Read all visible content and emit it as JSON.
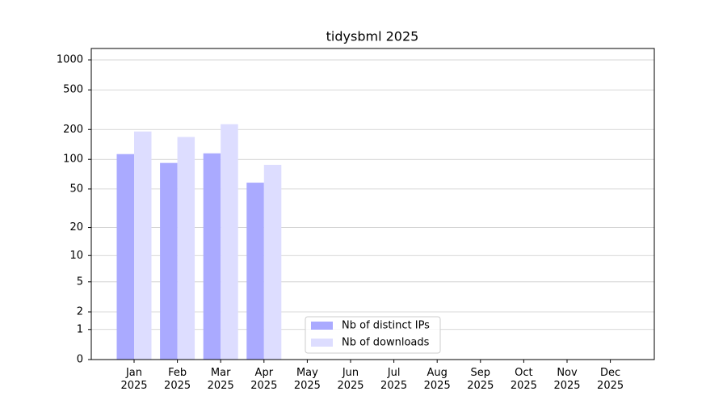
{
  "chart_data": {
    "type": "bar",
    "title": "tidysbml 2025",
    "categories": [
      "Jan\n2025",
      "Feb\n2025",
      "Mar\n2025",
      "Apr\n2025",
      "May\n2025",
      "Jun\n2025",
      "Jul\n2025",
      "Aug\n2025",
      "Sep\n2025",
      "Oct\n2025",
      "Nov\n2025",
      "Dec\n2025"
    ],
    "series": [
      {
        "name": "Nb of distinct IPs",
        "color": "#aaaaff",
        "values": [
          113,
          92,
          115,
          58,
          null,
          null,
          null,
          null,
          null,
          null,
          null,
          null
        ]
      },
      {
        "name": "Nb of downloads",
        "color": "#ddddff",
        "values": [
          191,
          168,
          226,
          88,
          null,
          null,
          null,
          null,
          null,
          null,
          null,
          null
        ]
      }
    ],
    "yscale": "log1p",
    "ylim": [
      0,
      1300
    ],
    "yticks": [
      0,
      1,
      2,
      5,
      10,
      20,
      50,
      100,
      200,
      500,
      1000
    ],
    "grid": true,
    "legend": "lower center"
  }
}
